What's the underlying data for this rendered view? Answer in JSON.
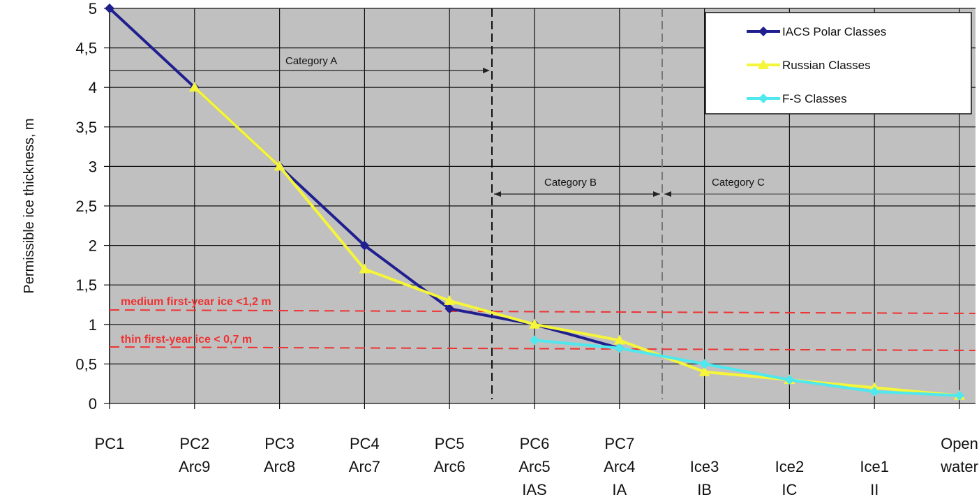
{
  "chart_data": {
    "type": "line",
    "ylabel": "Permissible ice thickness, m",
    "ylim": [
      0,
      5
    ],
    "yticks": [
      "0",
      "0,5",
      "1",
      "1,5",
      "2",
      "2,5",
      "3",
      "3,5",
      "4",
      "4,5",
      "5"
    ],
    "categories": [
      [
        "PC1"
      ],
      [
        "PC2",
        "Arc9"
      ],
      [
        "PC3",
        "Arc8"
      ],
      [
        "PC4",
        "Arc7"
      ],
      [
        "PC5",
        "Arc6"
      ],
      [
        "PC6",
        "Arc5",
        "IAS"
      ],
      [
        "PC7",
        "Arc4",
        "IA"
      ],
      [
        "",
        "Ice3",
        "IB"
      ],
      [
        "",
        "Ice2",
        "IC"
      ],
      [
        "",
        "Ice1",
        "II"
      ],
      [
        "Open",
        "water"
      ]
    ],
    "grid": true,
    "legend_position": "top-right",
    "series": [
      {
        "name": "IACS Polar Classes",
        "color": "#1f1f8f",
        "marker": "diamond",
        "values": [
          5,
          4,
          3,
          2,
          1.2,
          1.0,
          0.7,
          null,
          null,
          null,
          null
        ]
      },
      {
        "name": "Russian Classes",
        "color": "#f5f53a",
        "marker": "triangle",
        "values": [
          null,
          4,
          3,
          1.7,
          1.3,
          1.0,
          0.8,
          0.4,
          0.3,
          0.2,
          0.1
        ]
      },
      {
        "name": "F-S Classes",
        "color": "#4ee8ee",
        "marker": "diamond",
        "values": [
          null,
          null,
          null,
          null,
          null,
          0.8,
          0.7,
          0.5,
          0.3,
          0.15,
          0.1
        ]
      }
    ],
    "annotations": {
      "category_a": "Category A",
      "category_b": "Category B",
      "category_c": "Category C",
      "medium_ice": "medium first-year ice <1,2 m",
      "thin_ice": "thin first-year ice < 0,7 m"
    },
    "reference_lines": [
      {
        "label": "medium first-year ice <1,2 m",
        "value": 1.18,
        "color": "#ee3333"
      },
      {
        "label": "thin first-year ice < 0,7 m",
        "value": 0.72,
        "color": "#ee3333"
      }
    ]
  }
}
